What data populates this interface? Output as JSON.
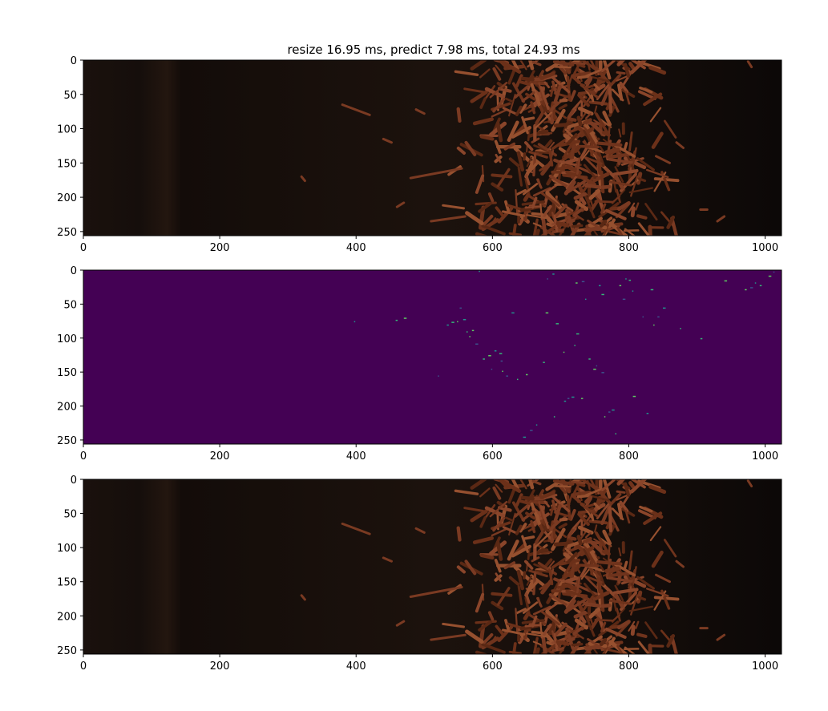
{
  "figure_title": "resize 16.95 ms, predict 7.98 ms, total 24.93 ms",
  "chart_data": [
    {
      "type": "image",
      "name": "input-frame",
      "xlim": [
        0,
        1024
      ],
      "ylim": [
        256,
        0
      ],
      "xticks": [
        "0",
        "200",
        "400",
        "600",
        "800",
        "1000"
      ],
      "yticks": [
        "0",
        "50",
        "100",
        "150",
        "200",
        "250"
      ],
      "background_color": "#120c09",
      "particle_color": "#7a3a22",
      "particle_cluster": {
        "x_range": [
          520,
          900
        ],
        "y_range": [
          0,
          256
        ]
      }
    },
    {
      "type": "heatmap",
      "name": "prediction-mask",
      "xlim": [
        0,
        1024
      ],
      "ylim": [
        256,
        0
      ],
      "xticks": [
        "0",
        "200",
        "400",
        "600",
        "800",
        "1000"
      ],
      "yticks": [
        "0",
        "50",
        "100",
        "150",
        "200",
        "250"
      ],
      "background_color": "#440154",
      "speck_colors": [
        "#21918c",
        "#35b779",
        "#5ec962",
        "#3b528b"
      ],
      "specks": [
        [
          397,
          75
        ],
        [
          458,
          73
        ],
        [
          470,
          70
        ],
        [
          520,
          155
        ],
        [
          533,
          80
        ],
        [
          540,
          76
        ],
        [
          548,
          75
        ],
        [
          552,
          55
        ],
        [
          557,
          72
        ],
        [
          562,
          90
        ],
        [
          570,
          88
        ],
        [
          575,
          108
        ],
        [
          580,
          1
        ],
        [
          586,
          130
        ],
        [
          594,
          125
        ],
        [
          598,
          145
        ],
        [
          603,
          118
        ],
        [
          610,
          122
        ],
        [
          614,
          148
        ],
        [
          620,
          155
        ],
        [
          628,
          62
        ],
        [
          636,
          160
        ],
        [
          649,
          153
        ],
        [
          655,
          235
        ],
        [
          664,
          227
        ],
        [
          674,
          135
        ],
        [
          678,
          62
        ],
        [
          680,
          12
        ],
        [
          688,
          5
        ],
        [
          693,
          78
        ],
        [
          704,
          120
        ],
        [
          710,
          188
        ],
        [
          716,
          186
        ],
        [
          720,
          110
        ],
        [
          722,
          18
        ],
        [
          731,
          16
        ],
        [
          736,
          42
        ],
        [
          741,
          130
        ],
        [
          748,
          145
        ],
        [
          752,
          140
        ],
        [
          756,
          22
        ],
        [
          760,
          35
        ],
        [
          764,
          215
        ],
        [
          770,
          208
        ],
        [
          775,
          205
        ],
        [
          780,
          240
        ],
        [
          786,
          22
        ],
        [
          791,
          42
        ],
        [
          795,
          12
        ],
        [
          800,
          14
        ],
        [
          806,
          185
        ],
        [
          820,
          68
        ],
        [
          826,
          210
        ],
        [
          832,
          28
        ],
        [
          836,
          80
        ],
        [
          842,
          68
        ],
        [
          850,
          55
        ],
        [
          875,
          85
        ],
        [
          970,
          28
        ],
        [
          978,
          25
        ],
        [
          985,
          18
        ],
        [
          992,
          22
        ],
        [
          1005,
          8
        ],
        [
          1012,
          2
        ],
        [
          705,
          192
        ],
        [
          723,
          93
        ],
        [
          566,
          97
        ],
        [
          612,
          133
        ],
        [
          645,
          245
        ],
        [
          690,
          215
        ],
        [
          730,
          188
        ],
        [
          760,
          150
        ],
        [
          805,
          30
        ],
        [
          905,
          100
        ],
        [
          940,
          15
        ]
      ]
    },
    {
      "type": "image",
      "name": "output-frame",
      "xlim": [
        0,
        1024
      ],
      "ylim": [
        256,
        0
      ],
      "xticks": [
        "0",
        "200",
        "400",
        "600",
        "800",
        "1000"
      ],
      "yticks": [
        "0",
        "50",
        "100",
        "150",
        "200",
        "250"
      ],
      "background_color": "#120c09",
      "particle_color": "#7a3a22",
      "particle_cluster": {
        "x_range": [
          520,
          900
        ],
        "y_range": [
          0,
          256
        ]
      }
    }
  ]
}
